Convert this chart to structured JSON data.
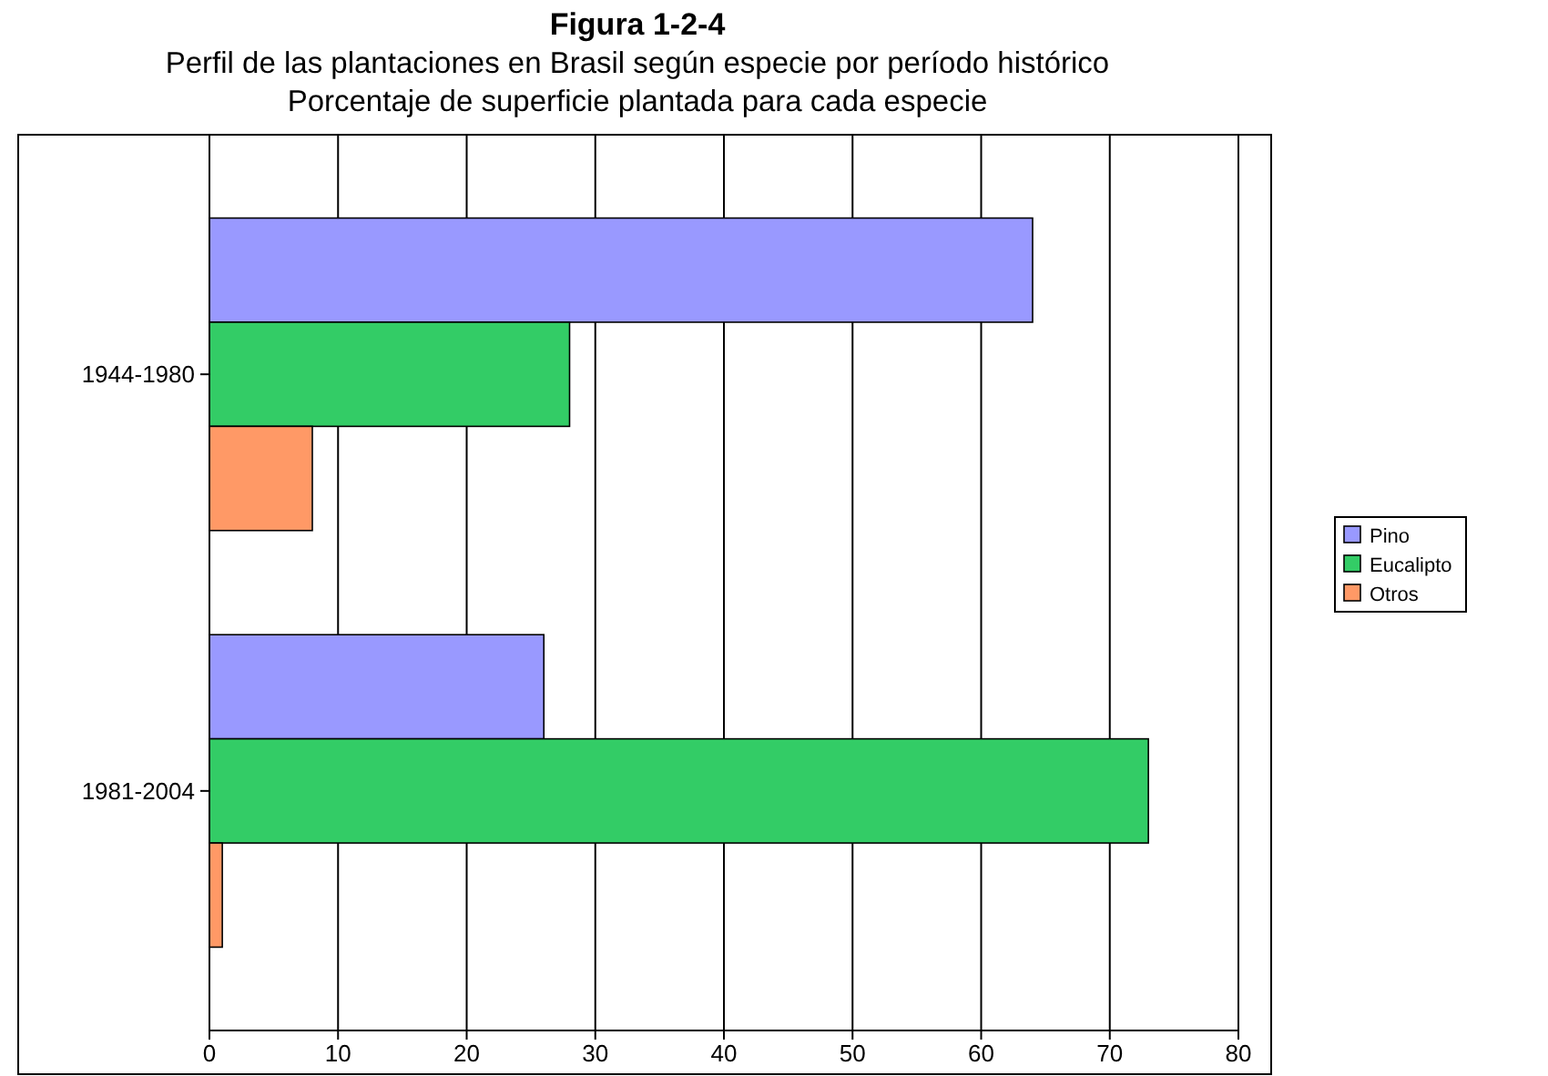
{
  "chart_data": {
    "type": "bar",
    "orientation": "horizontal",
    "title": "Figura 1-2-4",
    "subtitle": "Perfil de las plantaciones en Brasil según especie por período histórico\nPorcentaje de superficie plantada para cada especie",
    "categories": [
      "1944-1980",
      "1981-2004"
    ],
    "series": [
      {
        "name": "Pino",
        "color": "#9999ff",
        "values": [
          64,
          26
        ]
      },
      {
        "name": "Eucalipto",
        "color": "#33cc66",
        "values": [
          28,
          73
        ]
      },
      {
        "name": "Otros",
        "color": "#ff9966",
        "values": [
          8,
          1
        ]
      }
    ],
    "xlim": [
      0,
      80
    ],
    "xticks": [
      0,
      10,
      20,
      30,
      40,
      50,
      60,
      70,
      80
    ],
    "grid": "x",
    "legend": "right"
  }
}
